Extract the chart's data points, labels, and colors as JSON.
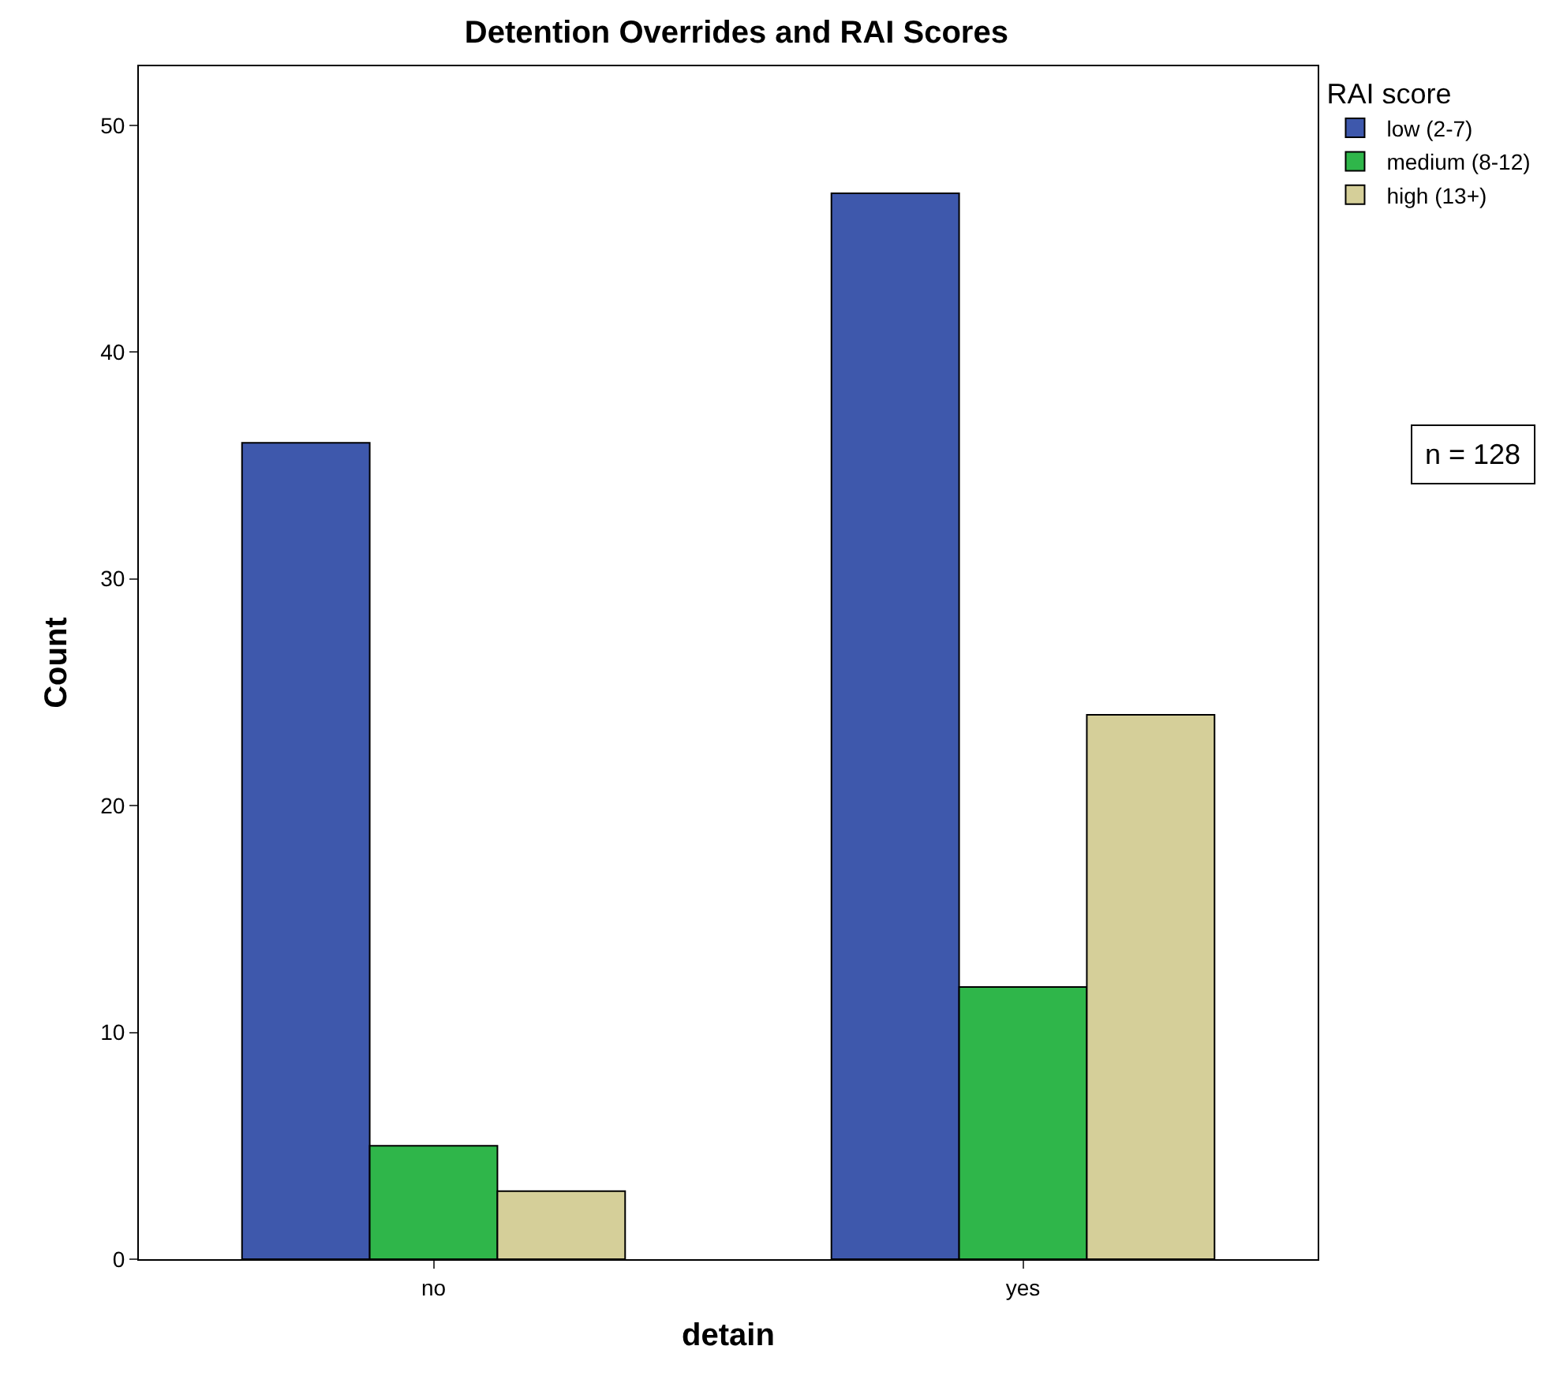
{
  "chart_data": {
    "type": "bar",
    "title": "Detention Overrides and RAI Scores",
    "xlabel": "detain",
    "ylabel": "Count",
    "legend_title": "RAI score",
    "categories": [
      "no",
      "yes"
    ],
    "series": [
      {
        "name": "low (2-7)",
        "color": "#3e58ac",
        "values": [
          36,
          47
        ]
      },
      {
        "name": "medium (8-12)",
        "color": "#2fb64a",
        "values": [
          5,
          12
        ]
      },
      {
        "name": "high (13+)",
        "color": "#d5cf99",
        "values": [
          3,
          24
        ]
      }
    ],
    "ylim": [
      0,
      52.6
    ],
    "yticks": [
      0,
      10,
      20,
      30,
      40,
      50
    ],
    "legend": "top right",
    "annotations": [
      "n = 128"
    ]
  }
}
